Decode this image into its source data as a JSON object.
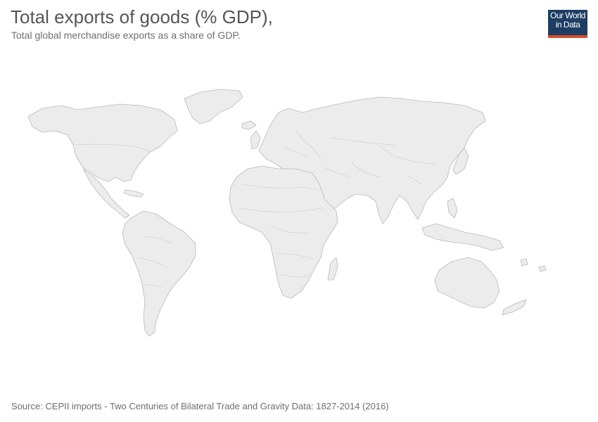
{
  "title": "Total exports of goods (% GDP),",
  "subtitle": "Total global merchandise exports as a share of GDP.",
  "logo": {
    "line1": "Our World",
    "line2": "in Data",
    "background": "#1d3d63",
    "accent": "#d64d2c"
  },
  "map": {
    "fill_color": "#ececec",
    "border_color": "#b9b9b9"
  },
  "source": "Source: CEPII imports - Two Centuries of Bilateral Trade and Gravity Data: 1827-2014 (2016)"
}
